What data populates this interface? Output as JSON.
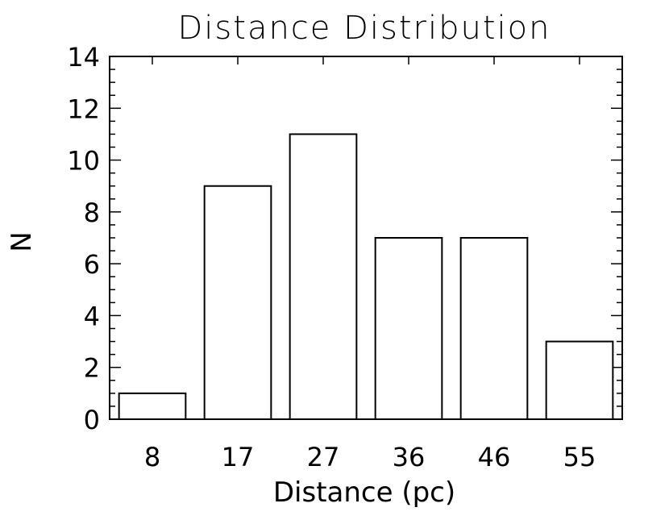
{
  "chart_data": {
    "type": "bar",
    "title": "Distance Distribution",
    "xlabel": "Distance (pc)",
    "ylabel": "N",
    "categories": [
      "8",
      "17",
      "27",
      "36",
      "46",
      "55"
    ],
    "values": [
      1,
      9,
      11,
      7,
      7,
      3
    ],
    "ylim": [
      0,
      14
    ],
    "yticks": [
      "0",
      "2",
      "4",
      "6",
      "8",
      "10",
      "12",
      "14"
    ],
    "bar_fill": "#ffffff",
    "bar_stroke": "#000000",
    "grid": false
  }
}
